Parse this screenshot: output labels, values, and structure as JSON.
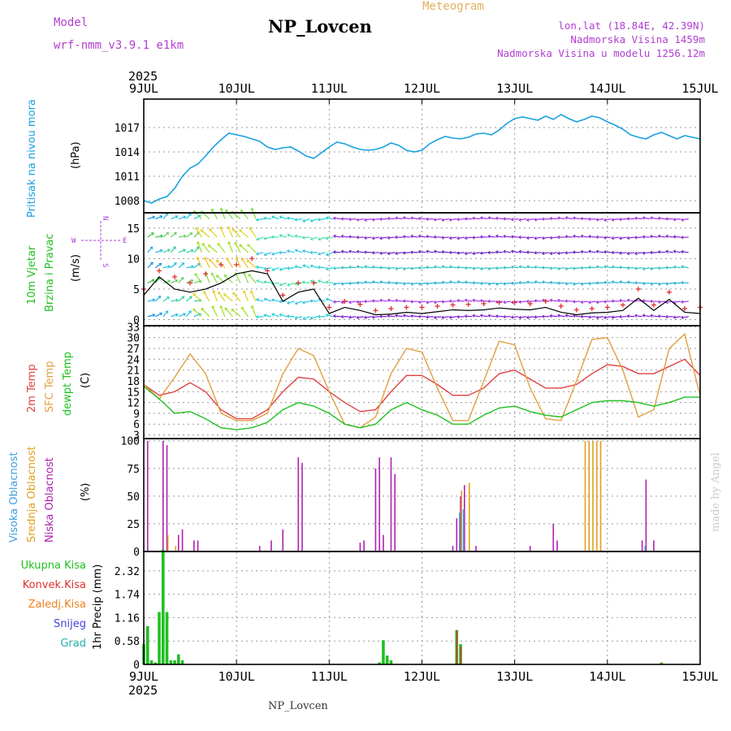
{
  "header": {
    "model_label": "Model",
    "model_name": "wrf-nmm_v3.9.1 e1km",
    "title": "NP_Lovcen",
    "meteogram_label": "Meteogram",
    "lonlat": "lon,lat (18.84E, 42.39N)",
    "elevation": "Nadmorska Visina 1459m",
    "model_elevation": "Nadmorska Visina u modelu 1256.12m"
  },
  "footer": {
    "station": "NP_Lovcen",
    "credit": "made by Angel"
  },
  "colors": {
    "pressure": "#1aa0e0",
    "wind_speed": "#000000",
    "gust_marker": "#e03030",
    "temp2m": "#e04040",
    "sfc_temp": "#e0a040",
    "dewpoint": "#20c020",
    "high_cloud": "#40a0e0",
    "mid_cloud": "#e0a020",
    "low_cloud": "#b020b0",
    "total_precip": "#20c020",
    "convective_precip": "#e03030",
    "freezing_precip": "#f08020",
    "snow": "#4040e0",
    "hail": "#20b0b0",
    "axis_ticks": "#000000",
    "label_purple": "#b040d0"
  },
  "time_axis": {
    "year": "2025",
    "ticks": [
      "9JUL",
      "10JUL",
      "11JUL",
      "12JUL",
      "13JUL",
      "14JUL",
      "15JUL"
    ],
    "hours": 144
  },
  "chart_data": [
    {
      "type": "line",
      "panel": "pressure",
      "ylabel_lines": [
        "Pritisak na nivou mora",
        "(hPa)"
      ],
      "y_ticks": [
        "1008",
        "1011",
        "1014",
        "1017"
      ],
      "ylim": [
        1006.5,
        1020.5
      ],
      "x": [
        0,
        2,
        4,
        6,
        8,
        10,
        12,
        14,
        16,
        18,
        20,
        22,
        24,
        26,
        28,
        30,
        32,
        34,
        36,
        38,
        40,
        42,
        44,
        46,
        48,
        50,
        52,
        54,
        56,
        58,
        60,
        62,
        64,
        66,
        68,
        70,
        72,
        74,
        76,
        78,
        80,
        82,
        84,
        86,
        88,
        90,
        92,
        94,
        96,
        98,
        100,
        102,
        104,
        106,
        108,
        110,
        112,
        114,
        116,
        118,
        120,
        122,
        124,
        126,
        128,
        130,
        132,
        134,
        136,
        138,
        140,
        142,
        144
      ],
      "series": [
        {
          "values": [
            1008,
            1007.7,
            1008.2,
            1008.5,
            1009.5,
            1011,
            1012,
            1012.5,
            1013.5,
            1014.6,
            1015.5,
            1016.3,
            1016.1,
            1015.9,
            1015.6,
            1015.3,
            1014.6,
            1014.3,
            1014.5,
            1014.6,
            1014.1,
            1013.5,
            1013.2,
            1013.9,
            1014.6,
            1015.2,
            1015.0,
            1014.6,
            1014.3,
            1014.2,
            1014.3,
            1014.6,
            1015.1,
            1014.8,
            1014.2,
            1014.0,
            1014.2,
            1015.0,
            1015.5,
            1015.9,
            1015.7,
            1015.6,
            1015.8,
            1016.2,
            1016.3,
            1016.1,
            1016.7,
            1017.5,
            1018.1,
            1018.3,
            1018.1,
            1017.9,
            1018.4,
            1018.0,
            1018.6,
            1018.1,
            1017.7,
            1018.0,
            1018.4,
            1018.2,
            1017.7,
            1017.3,
            1016.8,
            1016.1,
            1015.8,
            1015.6,
            1016.1,
            1016.4,
            1016.0,
            1015.6,
            1016.0,
            1015.8,
            1015.6
          ]
        }
      ]
    },
    {
      "type": "line",
      "panel": "wind",
      "ylabel_lines": [
        "10m Vjetar",
        "Brzina i Pravac",
        "(m/s)"
      ],
      "direction_legend": [
        "W",
        "E",
        "N",
        "S"
      ],
      "y_ticks": [
        "0",
        "5",
        "10",
        "15"
      ],
      "ylim": [
        -1,
        17.5
      ],
      "x": [
        0,
        4,
        8,
        12,
        16,
        20,
        24,
        28,
        32,
        36,
        40,
        44,
        48,
        52,
        56,
        60,
        64,
        68,
        72,
        76,
        80,
        84,
        88,
        92,
        96,
        100,
        104,
        108,
        112,
        116,
        120,
        124,
        128,
        132,
        136,
        140,
        144
      ],
      "series": [
        {
          "values": [
            4,
            7,
            5,
            4.5,
            5,
            6,
            7.5,
            8,
            7.5,
            3,
            4.5,
            5,
            1,
            2,
            1.5,
            0.8,
            0.9,
            1.2,
            1,
            1.3,
            1.6,
            1.5,
            1.6,
            1.9,
            1.7,
            1.6,
            2.0,
            1.2,
            0.8,
            1.1,
            1.2,
            1.5,
            3.5,
            1.5,
            3.3,
            1.2,
            1
          ]
        },
        {
          "values": [
            5,
            8,
            7,
            6,
            7.5,
            9,
            9,
            10,
            8,
            4,
            6,
            6,
            2,
            3,
            2.5,
            1.5,
            1.8,
            2,
            2,
            2.2,
            2.4,
            2.5,
            2.6,
            2.8,
            2.8,
            2.6,
            3,
            2.2,
            1.6,
            1.8,
            2.0,
            2.4,
            5,
            2.4,
            4.5,
            1.8,
            2
          ]
        }
      ],
      "wind_rows_ms": [
        0.5,
        3,
        6,
        8.5,
        11,
        13.5,
        16.5
      ]
    },
    {
      "type": "line",
      "panel": "temperature",
      "ylabel_lines": [
        "2m Temp",
        "SFC Temp",
        "dewpt Temp",
        "(C)"
      ],
      "y_ticks": [
        "3",
        "6",
        "9",
        "12",
        "15",
        "18",
        "21",
        "24",
        "27",
        "30",
        "33"
      ],
      "ylim": [
        2,
        33.3
      ],
      "x": [
        0,
        4,
        8,
        12,
        16,
        20,
        24,
        28,
        32,
        36,
        40,
        44,
        48,
        52,
        56,
        60,
        64,
        68,
        72,
        76,
        80,
        84,
        88,
        92,
        96,
        100,
        104,
        108,
        112,
        116,
        120,
        124,
        128,
        132,
        136,
        140,
        144
      ],
      "series": [
        {
          "values": [
            17,
            14,
            15,
            17.5,
            15,
            10,
            7.5,
            7.5,
            10,
            15,
            19,
            18.5,
            15,
            12,
            9.5,
            10,
            15,
            19.5,
            19.5,
            17,
            14,
            14,
            16,
            20,
            21,
            18.5,
            16,
            16,
            17,
            20,
            22.5,
            22,
            20,
            20,
            22,
            24,
            19.5
          ]
        },
        {
          "values": [
            17,
            13,
            19,
            25.5,
            20,
            9,
            7,
            7,
            9,
            20,
            27,
            25,
            15,
            6,
            5,
            8,
            20,
            27,
            26,
            16,
            7,
            7,
            18,
            29,
            28,
            16,
            7.5,
            7,
            18,
            29.5,
            30,
            21,
            8,
            10,
            27,
            31,
            14
          ]
        },
        {
          "values": [
            16.5,
            13,
            9,
            9.5,
            7.5,
            5,
            4.5,
            5,
            6.5,
            10,
            12,
            11,
            9,
            6,
            5,
            6,
            10,
            12,
            10,
            8.5,
            6,
            6,
            8.5,
            10.5,
            11,
            9.5,
            8.5,
            8,
            10,
            12,
            12.5,
            12.5,
            12,
            11,
            12,
            13.5,
            13.5
          ]
        }
      ]
    },
    {
      "type": "bar",
      "panel": "cloud",
      "ylabel_lines": [
        "Visoka Oblacnost",
        "Srednja Oblacnost",
        "Niska Oblacnost",
        "(%)"
      ],
      "y_ticks": [
        "0",
        "25",
        "50",
        "75",
        "100"
      ],
      "ylim": [
        0,
        102
      ],
      "low_cloud": [
        [
          1,
          100
        ],
        [
          5,
          100
        ],
        [
          6,
          96
        ],
        [
          9,
          15
        ],
        [
          10,
          20
        ],
        [
          13,
          10
        ],
        [
          14,
          10
        ],
        [
          30,
          5
        ],
        [
          33,
          10
        ],
        [
          36,
          20
        ],
        [
          40,
          85
        ],
        [
          41,
          80
        ],
        [
          56,
          8
        ],
        [
          57,
          10
        ],
        [
          60,
          75
        ],
        [
          61,
          85
        ],
        [
          62,
          15
        ],
        [
          64,
          85
        ],
        [
          65,
          70
        ],
        [
          80,
          5
        ],
        [
          81,
          30
        ],
        [
          82,
          50
        ],
        [
          83,
          60
        ],
        [
          86,
          5
        ],
        [
          100,
          5
        ],
        [
          106,
          25
        ],
        [
          107,
          10
        ],
        [
          129,
          10
        ],
        [
          130,
          65
        ],
        [
          132,
          10
        ]
      ],
      "mid_cloud": [
        [
          6,
          15
        ],
        [
          8,
          5
        ],
        [
          82,
          55
        ],
        [
          84,
          62
        ],
        [
          114,
          100
        ],
        [
          115,
          100
        ],
        [
          116,
          100
        ],
        [
          117,
          100
        ],
        [
          118,
          100
        ]
      ],
      "high_cloud": [
        [
          82,
          35
        ],
        [
          83,
          38
        ],
        [
          130,
          5
        ]
      ]
    },
    {
      "type": "bar",
      "panel": "precip",
      "ylabel_lines": [
        "1hr Precip (mm)"
      ],
      "legend": [
        "Ukupna Kisa",
        "Konvek.Kisa",
        "Zaledj.Kisa",
        "Snijeg",
        "Grad"
      ],
      "y_ticks": [
        "0",
        "0.58",
        "1.16",
        "1.74",
        "2.32"
      ],
      "ylim": [
        0,
        2.8
      ],
      "total_precip": [
        [
          0,
          0.5
        ],
        [
          1,
          0.95
        ],
        [
          2,
          0.1
        ],
        [
          3,
          0.05
        ],
        [
          4,
          1.3
        ],
        [
          5,
          2.85
        ],
        [
          6,
          1.3
        ],
        [
          7,
          0.1
        ],
        [
          8,
          0.1
        ],
        [
          9,
          0.25
        ],
        [
          10,
          0.1
        ],
        [
          61,
          0.05
        ],
        [
          62,
          0.6
        ],
        [
          63,
          0.22
        ],
        [
          64,
          0.1
        ],
        [
          81,
          0.85
        ],
        [
          82,
          0.5
        ],
        [
          134,
          0.05
        ]
      ],
      "convective_precip": [
        [
          81,
          0.85
        ],
        [
          82,
          0.45
        ]
      ],
      "freezing_precip": [
        [
          134,
          0.03
        ]
      ]
    }
  ]
}
